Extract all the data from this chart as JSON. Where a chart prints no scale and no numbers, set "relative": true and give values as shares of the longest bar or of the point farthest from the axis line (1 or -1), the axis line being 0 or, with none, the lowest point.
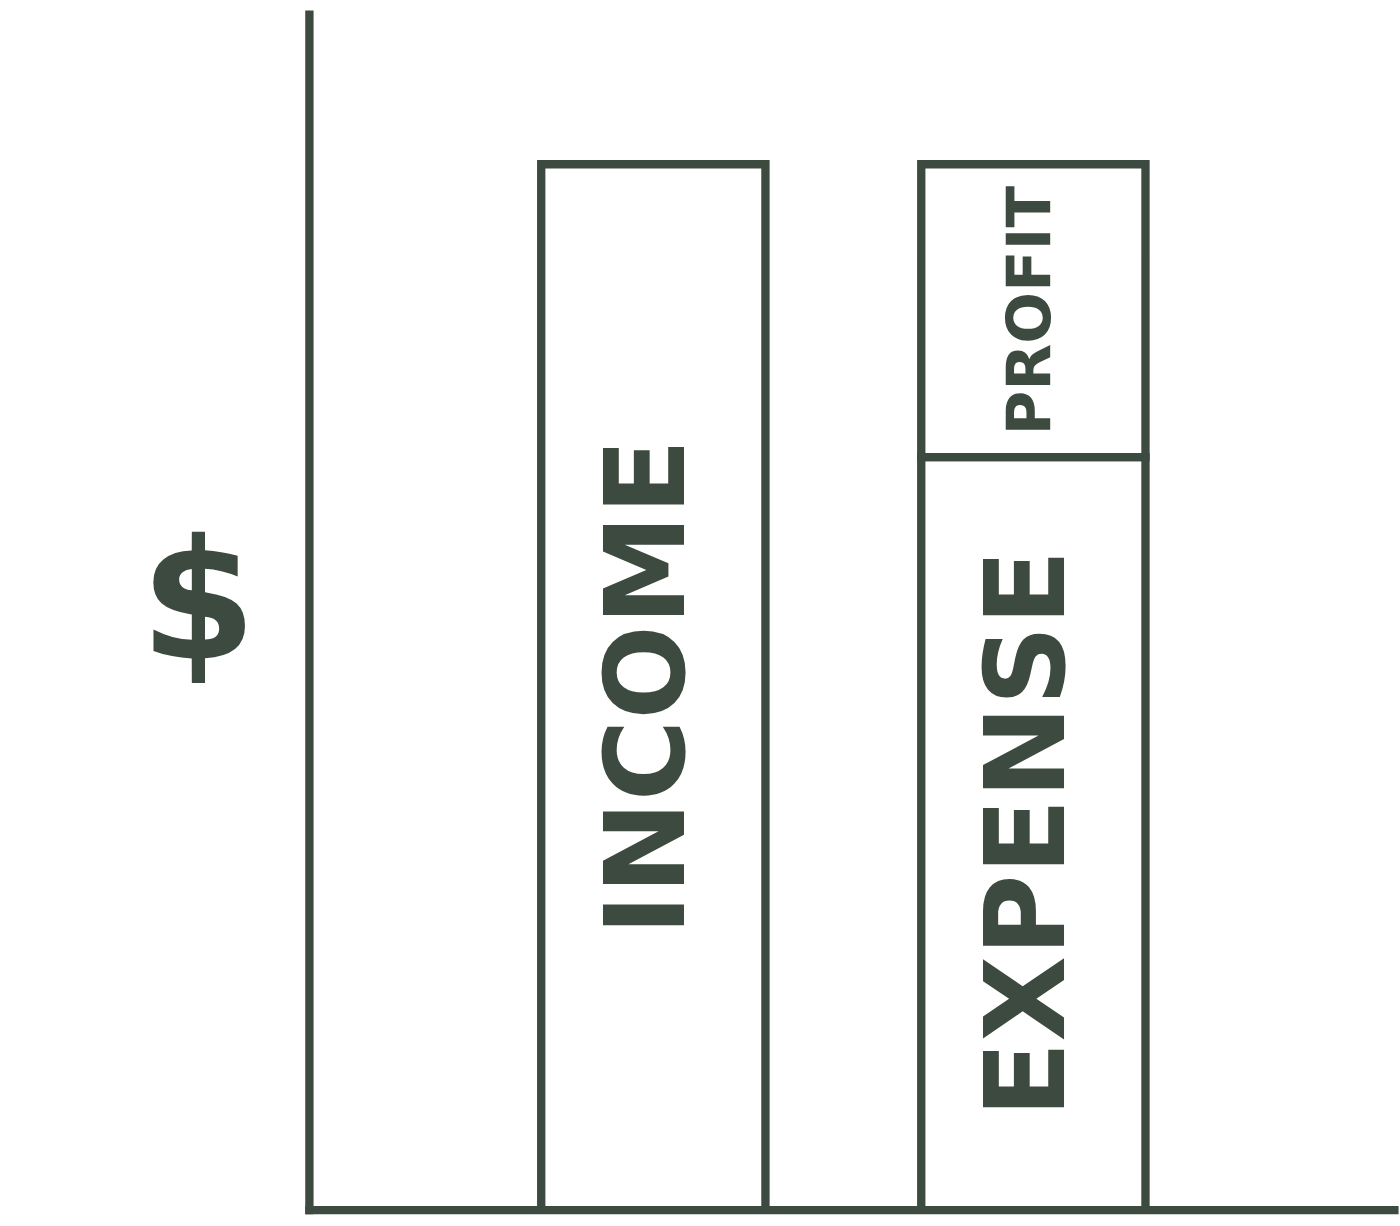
{
  "chart_data": {
    "type": "bar",
    "ylabel": "$",
    "categories": [
      null,
      null
    ],
    "stacked": true,
    "relative": true,
    "legend": false,
    "grid": false,
    "series": [
      {
        "name": "INCOME",
        "color": "#ffffff",
        "values": [
          1,
          null
        ]
      },
      {
        "name": "EXPENSE",
        "color": "#ffffff",
        "values": [
          null,
          0.72
        ]
      },
      {
        "name": "PROFIT",
        "color": "#ffffff",
        "values": [
          null,
          0.28
        ]
      }
    ]
  }
}
